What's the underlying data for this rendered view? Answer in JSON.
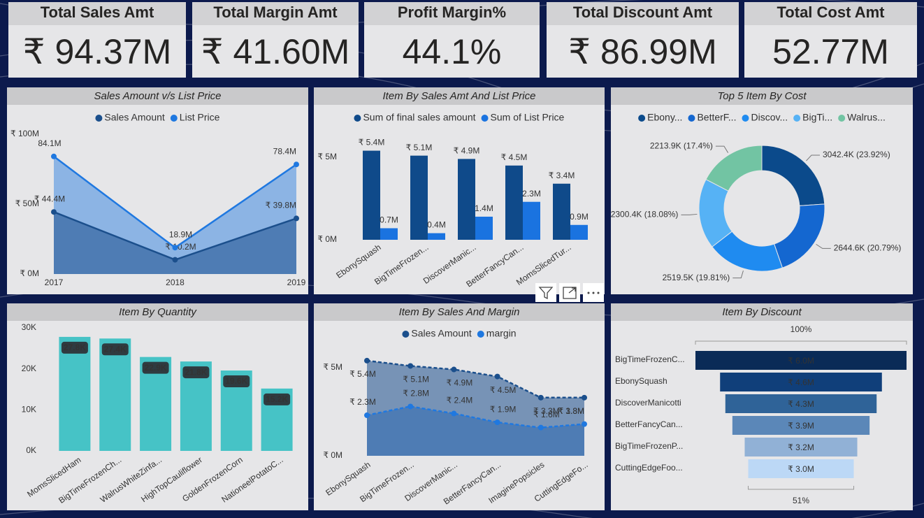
{
  "cards": [
    {
      "title": "Total Sales Amt",
      "value": "₹ 94.37M"
    },
    {
      "title": "Total Margin Amt",
      "value": "₹ 41.60M"
    },
    {
      "title": "Profit Margin%",
      "value": "44.1%"
    },
    {
      "title": "Total Discount Amt",
      "value": "₹ 86.99M"
    },
    {
      "title": "Total Cost Amt",
      "value": "52.77M"
    }
  ],
  "chart_data": [
    {
      "type": "area",
      "title": "Sales Amount v/s List Price",
      "categories": [
        "2017",
        "2018",
        "2019"
      ],
      "series": [
        {
          "name": "Sales Amount",
          "color": "#1b4f8c",
          "values": [
            44400000,
            10200000,
            39800000
          ],
          "value_labels": [
            "₹ 44.4M",
            "₹ 10.2M",
            "₹ 39.8M"
          ]
        },
        {
          "name": "List Price",
          "color": "#1f78e0",
          "values": [
            84100000,
            18900000,
            78400000
          ],
          "value_labels": [
            "84.1M",
            "18.9M",
            "78.4M"
          ]
        }
      ],
      "ylim": [
        0,
        100000000
      ],
      "yticks": [
        {
          "value": 0,
          "label": "₹ 0M"
        },
        {
          "value": 50000000,
          "label": "₹ 50M"
        },
        {
          "value": 100000000,
          "label": "₹ 100M"
        }
      ]
    },
    {
      "type": "bar",
      "title": "Item By Sales Amt And List Price",
      "categories": [
        "EbonySquash",
        "BigTimeFrozen...",
        "DiscoverManic...",
        "BetterFancyCan...",
        "MomsSlicedTur..."
      ],
      "series": [
        {
          "name": "Sum of final sales amount",
          "color": "#0f4a8a",
          "values": [
            5400000,
            5100000,
            4900000,
            4500000,
            3400000
          ],
          "value_labels": [
            "₹ 5.4M",
            "₹ 5.1M",
            "₹ 4.9M",
            "₹ 4.5M",
            "₹ 3.4M"
          ]
        },
        {
          "name": "Sum of List Price",
          "color": "#1a73e0",
          "values": [
            700000,
            400000,
            1400000,
            2300000,
            900000
          ],
          "value_labels": [
            "0.7M",
            "0.4M",
            "1.4M",
            "2.3M",
            "0.9M"
          ]
        }
      ],
      "ylim": [
        0,
        6000000
      ],
      "yticks": [
        {
          "value": 0,
          "label": "₹ 0M"
        },
        {
          "value": 5000000,
          "label": "₹ 5M"
        }
      ]
    },
    {
      "type": "donut",
      "title": "Top 5 Item By Cost",
      "series": [
        {
          "name": "Ebony...",
          "color": "#0b4a8b",
          "values": [
            3042.4
          ],
          "value_labels": [
            "3042.4K (23.92%)"
          ]
        },
        {
          "name": "BetterF...",
          "color": "#1467d0",
          "values": [
            2644.6
          ],
          "value_labels": [
            "2644.6K (20.79%)"
          ]
        },
        {
          "name": "Discov...",
          "color": "#1f8bf0",
          "values": [
            2519.5
          ],
          "value_labels": [
            "2519.5K (19.81%)"
          ]
        },
        {
          "name": "BigTi...",
          "color": "#56b2f5",
          "values": [
            2300.4
          ],
          "value_labels": [
            "2300.4K (18.08%)"
          ]
        },
        {
          "name": "Walrus...",
          "color": "#72c4a3",
          "values": [
            2213.9
          ],
          "value_labels": [
            "2213.9K (17.4%)"
          ]
        }
      ]
    },
    {
      "type": "bar",
      "title": "Item By Quantity",
      "categories": [
        "MomsSlicedHam",
        "BigTimeFrozenCh...",
        "WalrusWhiteZinfa...",
        "HighTopCauliflower",
        "GoldenFrozenCorn",
        "NationeelPotatoC..."
      ],
      "values": [
        27800,
        27400,
        22900,
        21800,
        19600,
        15200
      ],
      "value_labels": [
        "27.8K",
        "27.4K",
        "22.9K",
        "21.8K",
        "19.6K",
        "15.2K"
      ],
      "color": "#46c3c6",
      "ylim": [
        0,
        30000
      ],
      "yticks": [
        {
          "value": 0,
          "label": "0K"
        },
        {
          "value": 10000,
          "label": "10K"
        },
        {
          "value": 20000,
          "label": "20K"
        },
        {
          "value": 30000,
          "label": "30K"
        }
      ]
    },
    {
      "type": "area",
      "title": "Item By Sales And Margin",
      "dashed": true,
      "categories": [
        "EbonySquash",
        "BigTimeFrozen...",
        "DiscoverManic...",
        "BetterFancyCan...",
        "ImaginePopsicles",
        "CuttingEdgeFo..."
      ],
      "series": [
        {
          "name": "Sales Amount",
          "color": "#1b4f8c",
          "values": [
            5400000,
            5100000,
            4900000,
            4500000,
            3300000,
            3300000
          ],
          "value_labels": [
            "₹ 5.4M",
            "₹ 5.1M",
            "₹ 4.9M",
            "₹ 4.5M",
            "₹ 3.3M",
            "₹ 3.3M"
          ]
        },
        {
          "name": "margin",
          "color": "#1f78e0",
          "values": [
            2300000,
            2800000,
            2400000,
            1900000,
            1600000,
            1800000
          ],
          "value_labels": [
            "₹ 2.3M",
            "₹ 2.8M",
            "₹ 2.4M",
            "₹ 1.9M",
            "₹ 1.6M",
            "₹ 1.8M"
          ]
        }
      ],
      "ylim": [
        0,
        6000000
      ],
      "yticks": [
        {
          "value": 0,
          "label": "₹ 0M"
        },
        {
          "value": 5000000,
          "label": "₹ 5M"
        }
      ]
    },
    {
      "type": "funnel",
      "title": "Item By Discount",
      "categories": [
        "BigTimeFrozenC...",
        "EbonySquash",
        "DiscoverManicotti",
        "BetterFancyCan...",
        "BigTimeFrozenP...",
        "CuttingEdgeFoo..."
      ],
      "values": [
        6.0,
        4.6,
        4.3,
        3.9,
        3.2,
        3.0
      ],
      "value_labels": [
        "₹ 6.0M",
        "₹ 4.6M",
        "₹ 4.3M",
        "₹ 3.9M",
        "₹ 3.2M",
        "₹ 3.0M"
      ],
      "colors": [
        "#0a2b57",
        "#103f7a",
        "#2f6398",
        "#5b87b8",
        "#91b1d6",
        "#bcd8f6"
      ],
      "top_label": "100%",
      "bottom_label": "51%"
    }
  ]
}
